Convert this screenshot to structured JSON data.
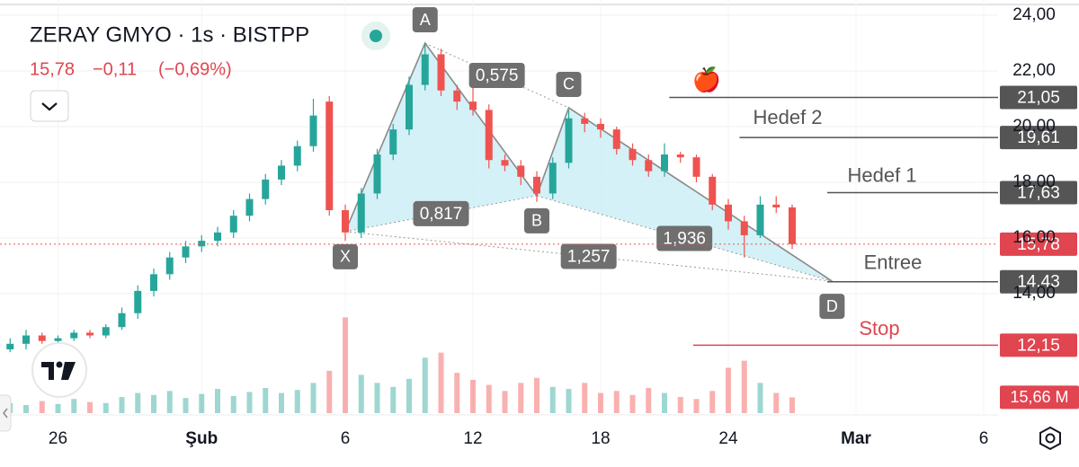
{
  "chart_data": {
    "type": "candlestick",
    "title": "ZERAY GMYO · 1s · BISTPP",
    "quote": {
      "price": "15,78",
      "change": "−0,11",
      "change_pct": "(−0,69%)"
    },
    "categories": [
      null,
      null,
      null,
      "26",
      null,
      null,
      null,
      null,
      null,
      null,
      null,
      null,
      "Şub",
      null,
      null,
      null,
      null,
      null,
      null,
      null,
      null,
      "6",
      null,
      null,
      null,
      null,
      null,
      null,
      null,
      "12",
      null,
      null,
      null,
      null,
      null,
      null,
      null,
      "18",
      null,
      null,
      null,
      null,
      null,
      null,
      null,
      "24",
      null,
      null,
      null,
      null,
      null,
      null,
      null,
      "Mar",
      null,
      null,
      null,
      null,
      null,
      null,
      null,
      "6"
    ],
    "open": [
      12.0,
      12.2,
      12.5,
      12.3,
      12.4,
      12.6,
      12.5,
      12.8,
      13.3,
      14.1,
      14.7,
      15.3,
      15.7,
      15.9,
      16.2,
      16.8,
      17.4,
      18.1,
      18.6,
      19.3,
      20.9,
      17.0,
      16.2,
      17.6,
      19.0,
      19.9,
      21.5,
      22.6,
      21.3,
      20.9,
      20.6,
      18.8,
      18.6,
      18.2,
      17.6,
      18.7,
      20.3,
      20.1,
      19.9,
      19.2,
      18.8,
      18.4,
      19.0,
      18.9,
      18.2,
      17.2,
      16.6,
      16.1,
      17.2,
      17.1,
      null,
      null,
      null,
      null,
      null,
      null,
      null,
      null,
      null,
      null,
      null,
      null
    ],
    "high": [
      12.4,
      12.7,
      12.6,
      12.5,
      12.7,
      12.7,
      12.9,
      13.5,
      14.3,
      14.9,
      15.5,
      15.9,
      16.1,
      16.4,
      17.0,
      17.6,
      18.3,
      18.8,
      19.5,
      21.0,
      21.1,
      17.2,
      17.8,
      19.2,
      20.1,
      21.8,
      23.0,
      22.8,
      21.5,
      21.9,
      20.8,
      19.0,
      18.8,
      18.4,
      18.9,
      20.6,
      20.5,
      20.3,
      20.0,
      19.4,
      19.0,
      19.4,
      19.1,
      19.0,
      18.3,
      17.4,
      16.8,
      17.5,
      17.5,
      17.2,
      null,
      null,
      null,
      null,
      null,
      null,
      null,
      null,
      null,
      null,
      null,
      null
    ],
    "low": [
      11.9,
      12.0,
      12.2,
      12.2,
      12.3,
      12.4,
      12.4,
      12.7,
      13.1,
      13.9,
      14.5,
      15.1,
      15.5,
      15.7,
      16.0,
      16.6,
      17.2,
      17.9,
      18.4,
      19.1,
      16.8,
      15.9,
      16.0,
      17.4,
      18.8,
      19.7,
      21.3,
      21.1,
      20.6,
      20.4,
      18.5,
      18.4,
      17.9,
      17.3,
      17.4,
      18.5,
      19.8,
      19.6,
      19.0,
      18.6,
      18.2,
      18.2,
      18.7,
      18.0,
      17.0,
      16.3,
      15.3,
      16.0,
      16.9,
      15.6,
      null,
      null,
      null,
      null,
      null,
      null,
      null,
      null,
      null,
      null,
      null,
      null
    ],
    "close": [
      12.2,
      12.5,
      12.3,
      12.4,
      12.6,
      12.5,
      12.8,
      13.3,
      14.1,
      14.7,
      15.3,
      15.7,
      15.9,
      16.2,
      16.8,
      17.4,
      18.1,
      18.6,
      19.3,
      20.4,
      17.0,
      16.2,
      17.6,
      19.0,
      19.9,
      21.5,
      22.6,
      21.3,
      20.9,
      20.6,
      18.8,
      18.6,
      18.2,
      17.6,
      18.7,
      20.3,
      20.1,
      19.9,
      19.2,
      18.8,
      18.4,
      19.0,
      18.9,
      18.2,
      17.2,
      16.6,
      16.1,
      17.2,
      17.1,
      15.78,
      null,
      null,
      null,
      null,
      null,
      null,
      null,
      null,
      null,
      null,
      null,
      null
    ],
    "volume": [
      10,
      8,
      12,
      9,
      14,
      11,
      10,
      16,
      20,
      18,
      22,
      15,
      19,
      24,
      17,
      21,
      25,
      20,
      23,
      30,
      42,
      95,
      38,
      30,
      26,
      34,
      55,
      60,
      40,
      33,
      28,
      22,
      30,
      35,
      26,
      24,
      30,
      20,
      22,
      18,
      25,
      20,
      16,
      14,
      22,
      45,
      52,
      30,
      20,
      15.66,
      null,
      null,
      null,
      null,
      null,
      null,
      null,
      null,
      null,
      null,
      null,
      null
    ],
    "volume_label": {
      "value": 15.66,
      "label": "15,66 M"
    },
    "vlim": [
      0,
      410
    ],
    "ylim": [
      9.71,
      24.55
    ],
    "yticks": [
      {
        "value": 14,
        "label": "14,00"
      },
      {
        "value": 16,
        "label": "16,00"
      },
      {
        "value": 18,
        "label": "18,00"
      },
      {
        "value": 20,
        "label": "20,00"
      },
      {
        "value": 22,
        "label": "22,00"
      },
      {
        "value": 24,
        "label": "24,00"
      }
    ],
    "grid": true,
    "up_color": "#26a69a",
    "down_color": "#ef5350",
    "last_price": {
      "value": 15.78,
      "label": "15,78"
    },
    "levels": [
      {
        "name": "🍎",
        "value": 21.05,
        "value_label": "21,05",
        "start": 41.3,
        "color": "#555555"
      },
      {
        "name": "Hedef 2",
        "value": 19.61,
        "value_label": "19,61",
        "start": 45.7,
        "color": "#555555"
      },
      {
        "name": "Hedef 1",
        "value": 17.63,
        "value_label": "17,63",
        "start": 51.2,
        "color": "#555555"
      },
      {
        "name": "Entree",
        "value": 14.43,
        "value_label": "14,43",
        "start": 51.2,
        "color": "#555555"
      },
      {
        "name": "Stop",
        "value": 12.15,
        "value_label": "12,15",
        "start": 42.8,
        "color": "#e04550"
      }
    ],
    "pattern": {
      "points": [
        {
          "label": "X",
          "index": 21,
          "price": 16.23
        },
        {
          "label": "A",
          "index": 26,
          "price": 23.0
        },
        {
          "label": "B",
          "index": 33,
          "price": 17.52
        },
        {
          "label": "C",
          "index": 35,
          "price": 20.68
        },
        {
          "label": "D",
          "index": 51.5,
          "price": 14.45
        }
      ],
      "ratios": [
        {
          "label": "0,817",
          "legs": [
            0,
            2
          ]
        },
        {
          "label": "0,575",
          "legs": [
            1,
            3
          ]
        },
        {
          "label": "1,257",
          "legs": [
            0,
            4
          ]
        },
        {
          "label": "1,936",
          "legs": [
            2,
            4
          ]
        }
      ]
    }
  }
}
